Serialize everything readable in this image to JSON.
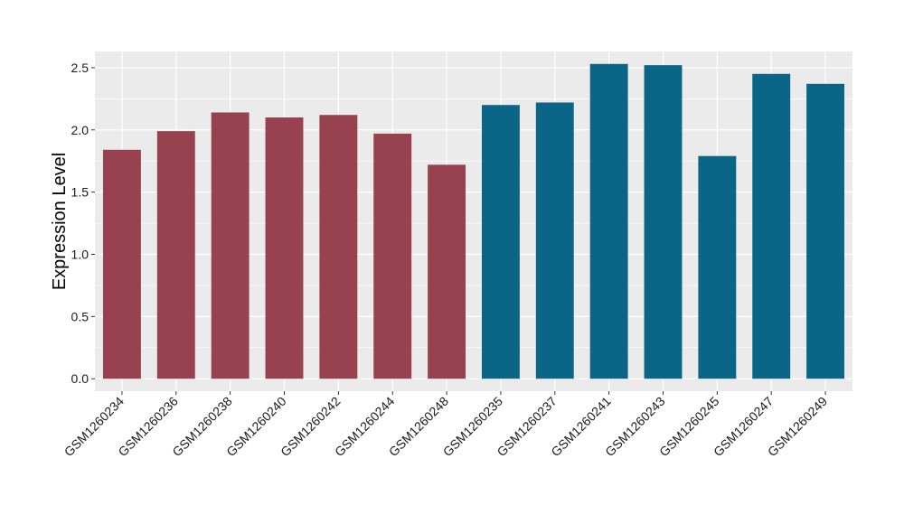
{
  "chart_data": {
    "type": "bar",
    "title": "",
    "xlabel": "",
    "ylabel": "Expression Level",
    "ylim": [
      -0.1,
      2.63
    ],
    "yticks": [
      0.0,
      0.5,
      1.0,
      1.5,
      2.0,
      2.5
    ],
    "ytick_labels": [
      "0.0",
      "0.5",
      "1.0",
      "1.5",
      "2.0",
      "2.5"
    ],
    "grid": true,
    "legend": "none",
    "colors": {
      "panel": "#EBEBEB",
      "grid": "#FFFFFF",
      "group_1": "#99424F",
      "group_2": "#0B6587"
    },
    "categories": [
      "GSM1260234",
      "GSM1260236",
      "GSM1260238",
      "GSM1260240",
      "GSM1260242",
      "GSM1260244",
      "GSM1260248",
      "GSM1260235",
      "GSM1260237",
      "GSM1260241",
      "GSM1260243",
      "GSM1260245",
      "GSM1260247",
      "GSM1260249"
    ],
    "values": [
      1.84,
      1.99,
      2.14,
      2.1,
      2.12,
      1.97,
      1.72,
      2.2,
      2.22,
      2.53,
      2.52,
      1.79,
      2.45,
      2.37
    ],
    "bar_colors": [
      "#99424F",
      "#99424F",
      "#99424F",
      "#99424F",
      "#99424F",
      "#99424F",
      "#99424F",
      "#0B6587",
      "#0B6587",
      "#0B6587",
      "#0B6587",
      "#0B6587",
      "#0B6587",
      "#0B6587"
    ]
  }
}
